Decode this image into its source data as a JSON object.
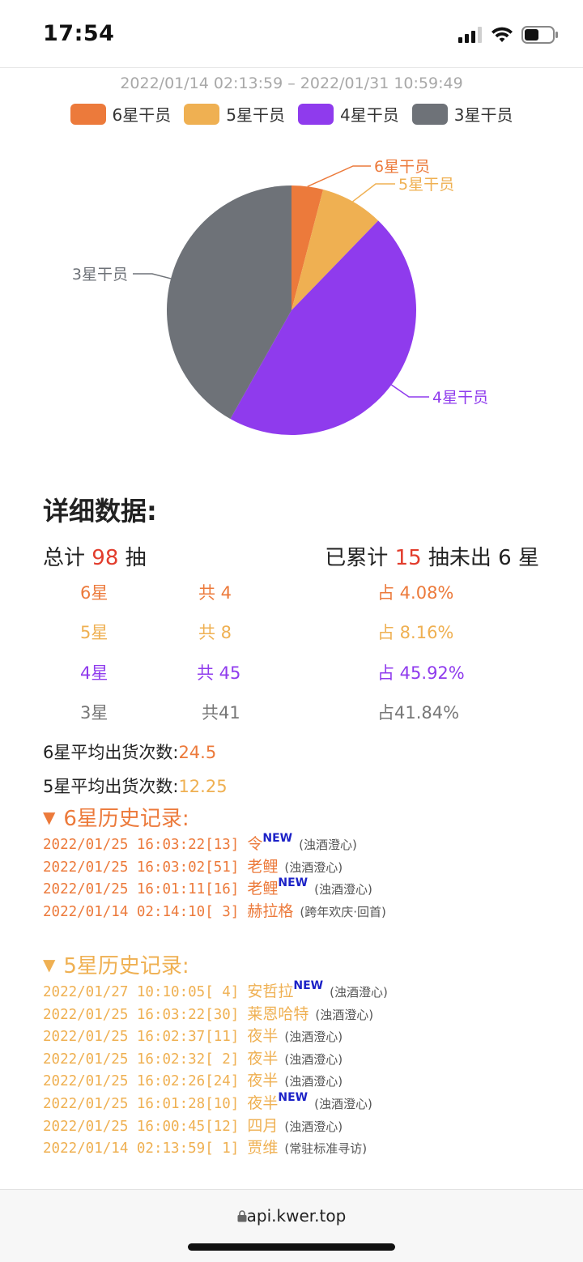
{
  "status": {
    "time": "17:54"
  },
  "range": "2022/01/14 02:13:59 – 2022/01/31 10:59:49",
  "legend": [
    {
      "label": "6星干员",
      "color": "#ec7a3b"
    },
    {
      "label": "5星干员",
      "color": "#efb052"
    },
    {
      "label": "4星干员",
      "color": "#8f3bed"
    },
    {
      "label": "3星干员",
      "color": "#6e7278"
    }
  ],
  "chart_data": {
    "type": "pie",
    "categories": [
      "6星干员",
      "5星干员",
      "4星干员",
      "3星干员"
    ],
    "values": [
      4,
      8,
      45,
      41
    ],
    "colors": [
      "#ec7a3b",
      "#efb052",
      "#8f3bed",
      "#6e7278"
    ],
    "title": "",
    "legend": "top"
  },
  "details": {
    "heading": "详细数据:",
    "total_prefix": "总计",
    "total": "98",
    "total_suffix": "抽",
    "since_prefix": "已累计",
    "since": "15",
    "since_suffix": "抽未出 6 星",
    "rows": [
      {
        "star": "6星",
        "count": "共 4",
        "pct": "占 4.08%",
        "color": "#ec7a3b"
      },
      {
        "star": "5星",
        "count": "共 8",
        "pct": "占 8.16%",
        "color": "#efb052"
      },
      {
        "star": "4星",
        "count": "共 45",
        "pct": "占 45.92%",
        "color": "#8f3bed"
      },
      {
        "star": "3星",
        "count": "共41",
        "pct": "占41.84%",
        "color": "#777777"
      }
    ],
    "avg6_label": "6星平均出货次数:",
    "avg6": "24.5",
    "avg5_label": "5星平均出货次数:",
    "avg5": "12.25"
  },
  "history6": {
    "title": "6星历史记录:",
    "color": "#ec7a3b",
    "items": [
      {
        "time": "2022/01/25 16:03:22",
        "idx": "[13]",
        "name": "令",
        "is_new": true,
        "new_label": "NEW",
        "pool": "(浊酒澄心)"
      },
      {
        "time": "2022/01/25 16:03:02",
        "idx": "[51]",
        "name": "老鲤",
        "is_new": false,
        "new_label": "",
        "pool": "(浊酒澄心)"
      },
      {
        "time": "2022/01/25 16:01:11",
        "idx": "[16]",
        "name": "老鲤",
        "is_new": true,
        "new_label": "NEW",
        "pool": "(浊酒澄心)"
      },
      {
        "time": "2022/01/14 02:14:10",
        "idx": "[ 3]",
        "name": "赫拉格",
        "is_new": false,
        "new_label": "",
        "pool": "(跨年欢庆·回首)"
      }
    ]
  },
  "history5": {
    "title": "5星历史记录:",
    "color": "#efb052",
    "items": [
      {
        "time": "2022/01/27 10:10:05",
        "idx": "[ 4]",
        "name": "安哲拉",
        "is_new": true,
        "new_label": "NEW",
        "pool": "(浊酒澄心)"
      },
      {
        "time": "2022/01/25 16:03:22",
        "idx": "[30]",
        "name": "莱恩哈特",
        "is_new": false,
        "new_label": "",
        "pool": "(浊酒澄心)"
      },
      {
        "time": "2022/01/25 16:02:37",
        "idx": "[11]",
        "name": "夜半",
        "is_new": false,
        "new_label": "",
        "pool": "(浊酒澄心)"
      },
      {
        "time": "2022/01/25 16:02:32",
        "idx": "[ 2]",
        "name": "夜半",
        "is_new": false,
        "new_label": "",
        "pool": "(浊酒澄心)"
      },
      {
        "time": "2022/01/25 16:02:26",
        "idx": "[24]",
        "name": "夜半",
        "is_new": false,
        "new_label": "",
        "pool": "(浊酒澄心)"
      },
      {
        "time": "2022/01/25 16:01:28",
        "idx": "[10]",
        "name": "夜半",
        "is_new": true,
        "new_label": "NEW",
        "pool": "(浊酒澄心)"
      },
      {
        "time": "2022/01/25 16:00:45",
        "idx": "[12]",
        "name": "四月",
        "is_new": false,
        "new_label": "",
        "pool": "(浊酒澄心)"
      },
      {
        "time": "2022/01/14 02:13:59",
        "idx": "[ 1]",
        "name": "贾维",
        "is_new": false,
        "new_label": "",
        "pool": "(常驻标准寻访)"
      }
    ]
  },
  "browser": {
    "url": "api.kwer.top"
  }
}
